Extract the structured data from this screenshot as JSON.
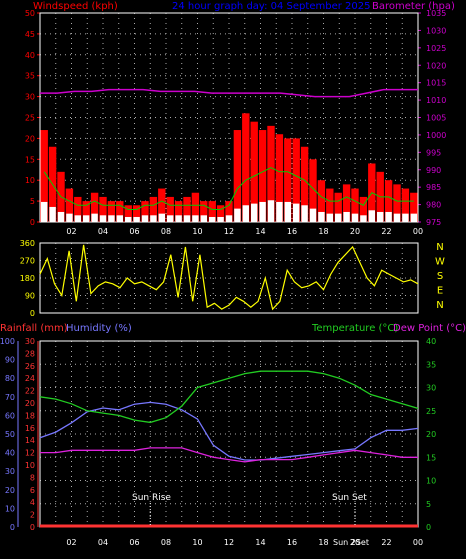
{
  "colors": {
    "background": "#000000",
    "wind": "#ff0000",
    "gust_avg": "#00cc00",
    "wind_low": "#ffffff",
    "barometer": "#cc00cc",
    "wind_dir": "#ffff00",
    "rainfall": "#ff3333",
    "humidity": "#7777ff",
    "temperature": "#22cc22",
    "dewpoint": "#dd22dd",
    "rain_axis": "#ff3333",
    "title": "#0000ff"
  },
  "header": {
    "left_label": "Windspeed (kph)",
    "title": "24 hour graph day: 04 September 2025",
    "right_label": "Barometer (hpa)"
  },
  "mid_header": {
    "rain_label": "Rainfall (mm)",
    "humidity_label": "Humidity (%)",
    "temp_label": "Temperature (°C)",
    "dew_label": "Dew Point (°C)"
  },
  "annotations": {
    "sunrise": "Sun Rise",
    "sunset": "Sun Set",
    "sunset_clock": "Sun 2Set"
  },
  "chart_data": [
    {
      "type": "bar",
      "name": "windspeed",
      "x_ticks": [
        "02",
        "04",
        "06",
        "08",
        "10",
        "12",
        "14",
        "16",
        "18",
        "20",
        "22",
        "00"
      ],
      "y_left_ticks": [
        0,
        5,
        10,
        15,
        20,
        25,
        30,
        35,
        40,
        45,
        50
      ],
      "y_right_ticks": [
        975,
        980,
        985,
        990,
        995,
        1000,
        1005,
        1010,
        1015,
        1020,
        1025,
        1030,
        1035
      ],
      "ylim_left": [
        0,
        50
      ],
      "ylim_right": [
        975,
        1035
      ],
      "xlim_hours": [
        0,
        24
      ],
      "grid": true,
      "wind_gust_kph": [
        22,
        18,
        12,
        8,
        6,
        5,
        7,
        6,
        5,
        5,
        4,
        4,
        5,
        6,
        8,
        6,
        5,
        6,
        7,
        5,
        5,
        4,
        5,
        22,
        26,
        24,
        22,
        23,
        21,
        20,
        20,
        18,
        15,
        10,
        8,
        7,
        9,
        8,
        6,
        14,
        12,
        10,
        9,
        8,
        7
      ],
      "wind_avg_kph": [
        12,
        9,
        6,
        5,
        4,
        4,
        5,
        4,
        4,
        4,
        3,
        3,
        4,
        4,
        5,
        4,
        4,
        4,
        4,
        4,
        3,
        3,
        4,
        8,
        10,
        11,
        12,
        13,
        12,
        12,
        11,
        10,
        8,
        6,
        5,
        5,
        6,
        5,
        4,
        7,
        6,
        6,
        5,
        5,
        5
      ],
      "barometer_hpa": [
        1012,
        1012,
        1012.5,
        1012.5,
        1013,
        1013,
        1013,
        1012.5,
        1012.5,
        1012.5,
        1012,
        1012,
        1012,
        1012,
        1012,
        1011.5,
        1011,
        1011,
        1011,
        1012,
        1013,
        1013,
        1013
      ]
    },
    {
      "type": "line",
      "name": "wind_direction",
      "y_ticks": [
        0,
        90,
        180,
        270,
        360
      ],
      "y_right_labels": [
        "N",
        "W",
        "S",
        "E",
        "N"
      ],
      "ylim": [
        0,
        360
      ],
      "direction_deg": [
        200,
        280,
        150,
        90,
        320,
        60,
        350,
        100,
        140,
        160,
        150,
        130,
        180,
        150,
        160,
        140,
        120,
        160,
        300,
        80,
        340,
        60,
        300,
        30,
        50,
        20,
        40,
        80,
        60,
        30,
        60,
        180,
        20,
        60,
        220,
        160,
        130,
        140,
        160,
        120,
        200,
        260,
        300,
        340,
        260,
        180,
        140,
        220,
        200,
        180,
        160,
        170,
        150
      ]
    },
    {
      "type": "line",
      "name": "temperature_humidity",
      "y_rain_ticks": [
        0,
        2,
        4,
        6,
        8,
        10,
        12,
        14,
        16,
        18,
        20,
        22,
        24,
        26,
        28,
        30
      ],
      "y_humidity_ticks": [
        0,
        10,
        20,
        30,
        40,
        50,
        60,
        70,
        80,
        90,
        100
      ],
      "y_temp_ticks": [
        0,
        5,
        10,
        15,
        20,
        25,
        30,
        35,
        40
      ],
      "ylim_humidity": [
        0,
        100
      ],
      "ylim_temp": [
        0,
        40
      ],
      "ylim_rain": [
        0,
        30
      ],
      "rainfall_mm": [
        0,
        0,
        0,
        0,
        0,
        0,
        0,
        0,
        0,
        0,
        0,
        0,
        0
      ],
      "humidity_pct": [
        48,
        51,
        56,
        62,
        64,
        63,
        66,
        67,
        66,
        63,
        58,
        44,
        38,
        36,
        36,
        37,
        38,
        39,
        40,
        41,
        42,
        48,
        52,
        52,
        53
      ],
      "temperature_c": [
        28,
        27.5,
        26.5,
        25,
        24.5,
        24,
        23,
        22.5,
        23.5,
        26,
        30,
        31,
        32,
        33,
        33.5,
        33.5,
        33.5,
        33.5,
        33,
        32,
        30.5,
        28.5,
        27.5,
        26.5,
        25.5
      ],
      "dewpoint_c": [
        16,
        16,
        16.5,
        16.5,
        16.5,
        16.5,
        16.5,
        17,
        17,
        17,
        16,
        15,
        14.5,
        14,
        14.5,
        14.5,
        14.5,
        15,
        15.5,
        16,
        16.5,
        16,
        15.5,
        15,
        15
      ]
    }
  ]
}
